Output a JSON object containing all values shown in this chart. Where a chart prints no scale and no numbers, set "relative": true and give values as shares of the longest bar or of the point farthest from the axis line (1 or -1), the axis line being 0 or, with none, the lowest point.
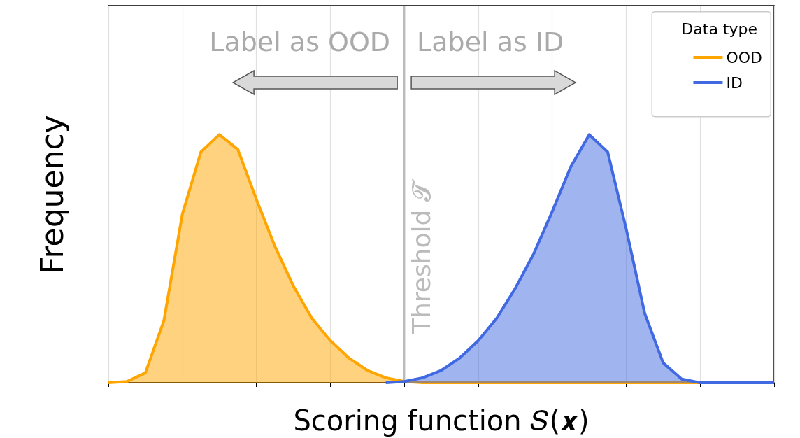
{
  "chart_data": {
    "type": "area",
    "relative": true,
    "xlabel": "Scoring function 𝑆(𝒙)",
    "ylabel": "Frequency",
    "legend_title": "Data type",
    "legend": "top right",
    "grid": "x",
    "categories": [
      null,
      null,
      null,
      null,
      null,
      null,
      null,
      null,
      null,
      null,
      null,
      null,
      null,
      null,
      null,
      null,
      null,
      null,
      null,
      null,
      null,
      null,
      null,
      null,
      null,
      null,
      null,
      null,
      null,
      null,
      null,
      null,
      null,
      null,
      null,
      null,
      null
    ],
    "series": [
      {
        "name": "OOD",
        "color": "#ffa500",
        "values": [
          0,
          0.005,
          0.04,
          0.25,
          0.68,
          0.93,
          1,
          0.94,
          0.74,
          0.55,
          0.39,
          0.26,
          0.17,
          0.1,
          0.05,
          0.02,
          0.005,
          0,
          0,
          0,
          0,
          0,
          0,
          0,
          0,
          0,
          0,
          0,
          0,
          0,
          0,
          0,
          0,
          0,
          0,
          0,
          0
        ]
      },
      {
        "name": "ID",
        "color": "#4169e1",
        "values": [
          null,
          null,
          null,
          null,
          null,
          null,
          null,
          null,
          null,
          null,
          null,
          null,
          null,
          null,
          null,
          0,
          0.005,
          0.02,
          0.05,
          0.1,
          0.17,
          0.26,
          0.38,
          0.52,
          0.69,
          0.87,
          1,
          0.93,
          0.62,
          0.28,
          0.08,
          0.015,
          0,
          0,
          0,
          0,
          0
        ]
      }
    ],
    "annotations": [
      "Label as OOD",
      "Label as ID",
      "Threshold 𝓣"
    ]
  }
}
